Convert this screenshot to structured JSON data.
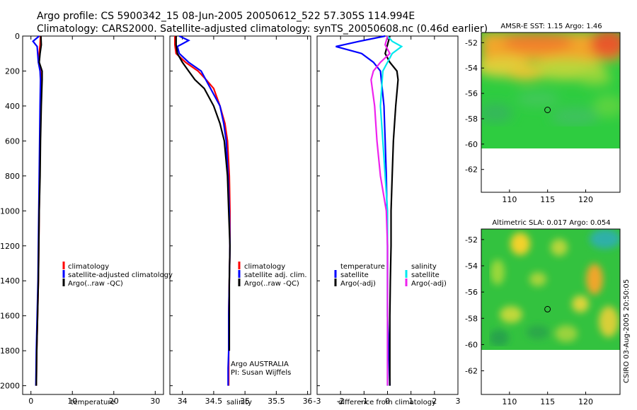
{
  "header": {
    "line1": "Argo profile: CS 5900342_15 08-Jun-2005 20050612_522 57.305S 114.994E",
    "line2": "Climatology: CARS2000. Satellite-adjusted climatology: synTS_20050608.nc (0.46d earlier)"
  },
  "footer": {
    "agency": "Argo AUSTRALIA",
    "pi": "PI: Susan Wijffels",
    "stamp": "CSIRO 03-Aug-2005 20:50:05"
  },
  "colors": {
    "red": "#ff0000",
    "blue": "#0000ff",
    "black": "#000000",
    "cyan": "#00e8ee",
    "magenta": "#ee22ee"
  },
  "chart_data": [
    {
      "type": "line",
      "title": "",
      "xlabel": "temperature",
      "ylabel": "",
      "xlim": [
        -2,
        32
      ],
      "ylim": [
        2050,
        0
      ],
      "xticks": [
        0,
        10,
        20,
        30
      ],
      "yticks": [
        0,
        200,
        400,
        600,
        800,
        1000,
        1200,
        1400,
        1600,
        1800,
        2000
      ],
      "series": [
        {
          "name": "climatology",
          "color": "red",
          "x": [
            2.3,
            2.2,
            2.0,
            1.9,
            2.3,
            2.4,
            2.3,
            2.2,
            2.1,
            2.0,
            1.9,
            1.8,
            1.6,
            1.4,
            1.3
          ],
          "y": [
            0,
            50,
            100,
            150,
            200,
            250,
            400,
            600,
            800,
            1000,
            1200,
            1400,
            1600,
            1800,
            2000
          ]
        },
        {
          "name": "satellite-adjusted climatology",
          "color": "blue",
          "x": [
            2.0,
            0.5,
            1.5,
            1.8,
            2.2,
            2.3,
            2.2,
            2.1,
            2.0,
            1.9,
            1.8,
            1.7,
            1.5,
            1.3,
            1.2
          ],
          "y": [
            0,
            30,
            60,
            150,
            200,
            250,
            400,
            600,
            800,
            1000,
            1200,
            1400,
            1600,
            1800,
            2000
          ]
        },
        {
          "name": "Argo(..raw -QC)",
          "color": "black",
          "x": [
            2.4,
            2.5,
            2.2,
            2.0,
            2.7,
            2.7,
            2.5,
            2.3,
            2.2,
            2.0,
            1.9,
            1.8,
            1.6,
            1.4,
            1.3
          ],
          "y": [
            0,
            50,
            100,
            150,
            200,
            250,
            400,
            600,
            800,
            1000,
            1200,
            1400,
            1600,
            1800,
            2000
          ]
        }
      ],
      "legend": [
        "climatology",
        "satellite-adjusted climatology",
        "Argo(..raw -QC)"
      ]
    },
    {
      "type": "line",
      "title": "",
      "xlabel": "salinity",
      "ylabel": "",
      "xlim": [
        33.8,
        36.05
      ],
      "ylim": [
        2050,
        0
      ],
      "xticks": [
        34,
        34.5,
        35,
        35.5,
        36
      ],
      "series": [
        {
          "name": "climatology",
          "color": "red",
          "x": [
            33.88,
            33.88,
            33.9,
            34.05,
            34.25,
            34.38,
            34.5,
            34.6,
            34.68,
            34.72,
            34.75,
            34.76,
            34.76,
            34.75,
            34.74,
            34.74,
            34.74,
            34.74
          ],
          "y": [
            0,
            50,
            100,
            150,
            200,
            250,
            300,
            400,
            500,
            600,
            800,
            1000,
            1200,
            1400,
            1600,
            1800,
            1900,
            2000
          ]
        },
        {
          "name": "satellite adj. clim.",
          "color": "blue",
          "x": [
            33.95,
            34.1,
            33.92,
            33.95,
            34.1,
            34.3,
            34.45,
            34.6,
            34.66,
            34.7,
            34.73,
            34.75,
            34.76,
            34.75,
            34.74,
            34.74,
            34.73,
            34.73
          ],
          "y": [
            0,
            25,
            60,
            100,
            150,
            200,
            300,
            400,
            500,
            600,
            800,
            1000,
            1200,
            1400,
            1600,
            1800,
            1900,
            2000
          ]
        },
        {
          "name": "Argo(..raw -QC)",
          "color": "black",
          "x": [
            33.9,
            33.9,
            33.92,
            34.0,
            34.1,
            34.2,
            34.35,
            34.5,
            34.6,
            34.67,
            34.72,
            34.74,
            34.76,
            34.75,
            34.75,
            34.75
          ],
          "y": [
            0,
            50,
            100,
            150,
            200,
            250,
            300,
            400,
            500,
            600,
            800,
            1000,
            1200,
            1400,
            1600,
            1800
          ]
        }
      ],
      "legend": [
        "climatology",
        "satellite adj. clim.",
        "Argo(..raw -QC)"
      ]
    },
    {
      "type": "line",
      "title": "",
      "xlabel": "difference from climatology",
      "ylabel": "",
      "xlim": [
        -3,
        3
      ],
      "ylim": [
        2050,
        0
      ],
      "xticks": [
        -3,
        -2,
        -1,
        0,
        1,
        2,
        3
      ],
      "series": [
        {
          "name": "temperature satellite",
          "color": "blue",
          "x": [
            -0.1,
            -1.2,
            -2.2,
            -1.1,
            -0.6,
            -0.3,
            -0.15,
            -0.1,
            -0.05,
            -0.02,
            0.0,
            0.0,
            0.0,
            0.05,
            0.1
          ],
          "y": [
            0,
            30,
            60,
            100,
            150,
            200,
            400,
            600,
            800,
            1000,
            1200,
            1400,
            1600,
            1800,
            2000
          ]
        },
        {
          "name": "temperature Argo(-adj)",
          "color": "black",
          "x": [
            0.1,
            0.0,
            -0.1,
            0.1,
            0.4,
            0.45,
            0.35,
            0.25,
            0.2,
            0.15,
            0.15,
            0.12,
            0.1,
            0.1,
            0.1
          ],
          "y": [
            0,
            50,
            100,
            150,
            200,
            250,
            400,
            600,
            800,
            1000,
            1200,
            1400,
            1600,
            1800,
            2000
          ]
        },
        {
          "name": "salinity satellite",
          "color": "cyan",
          "x": [
            0.0,
            0.2,
            0.6,
            0.2,
            0.0,
            -0.2,
            -0.3,
            -0.2,
            -0.1,
            0.0,
            0.0,
            0.0,
            0.0,
            0.0,
            0.0
          ],
          "y": [
            0,
            30,
            60,
            100,
            150,
            200,
            400,
            600,
            800,
            1000,
            1200,
            1400,
            1600,
            1800,
            2000
          ]
        },
        {
          "name": "salinity Argo(-adj)",
          "color": "magenta",
          "x": [
            0.0,
            -0.1,
            0.1,
            -0.3,
            -0.6,
            -0.7,
            -0.55,
            -0.45,
            -0.3,
            -0.05,
            0.0,
            0.0,
            0.0,
            0.0,
            0.0
          ],
          "y": [
            0,
            50,
            100,
            150,
            200,
            250,
            400,
            600,
            800,
            1000,
            1200,
            1400,
            1600,
            1800,
            2000
          ]
        }
      ],
      "legend_left_title": "temperature",
      "legend_right_title": "salinity",
      "legend": [
        "satellite",
        "Argo(-adj)",
        "satellite",
        "Argo(-adj)"
      ]
    },
    {
      "type": "heatmap",
      "title": "AMSR-E SST: 1.15 Argo: 1.46",
      "xticks": [
        110,
        115,
        120
      ],
      "yticks": [
        -52,
        -54,
        -56,
        -58,
        -60,
        -62
      ],
      "xlim": [
        106.3,
        124.5
      ],
      "ylim": [
        -63.8,
        -51.2
      ],
      "marker": {
        "lon": 114.994,
        "lat": -57.305
      }
    },
    {
      "type": "heatmap",
      "title": "Altimetric SLA: 0.017 Argo: 0.054",
      "xticks": [
        110,
        115,
        120
      ],
      "yticks": [
        -52,
        -54,
        -56,
        -58,
        -60,
        -62
      ],
      "xlim": [
        106.3,
        124.5
      ],
      "ylim": [
        -63.8,
        -51.2
      ],
      "marker": {
        "lon": 114.994,
        "lat": -57.305
      }
    }
  ]
}
